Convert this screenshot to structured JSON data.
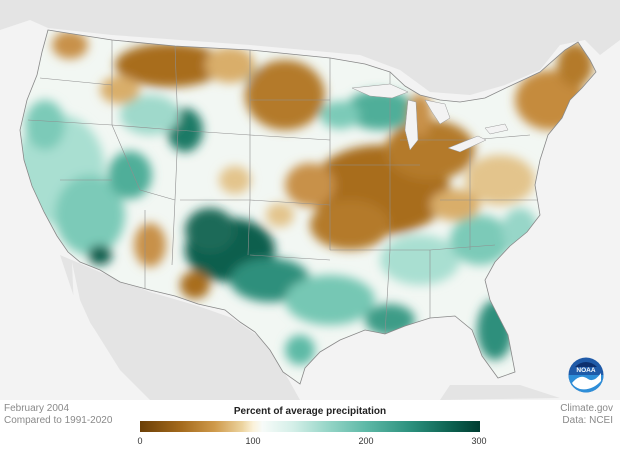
{
  "map": {
    "period": "February 2004",
    "comparison": "Compared to 1991-2020",
    "legend_title": "Percent of average precipitation",
    "legend_ticks": [
      "0",
      "100",
      "200",
      "300"
    ],
    "source_site": "Climate.gov",
    "source_data": "Data: NCEI",
    "logo_text": "NOAA",
    "colors": {
      "ocean": "#f2f2f2",
      "foreign_land": "#e6e6e6",
      "dry_extreme": "#6b3f06",
      "near_average": "#f9f5ec",
      "wet_extreme": "#003d31"
    }
  }
}
